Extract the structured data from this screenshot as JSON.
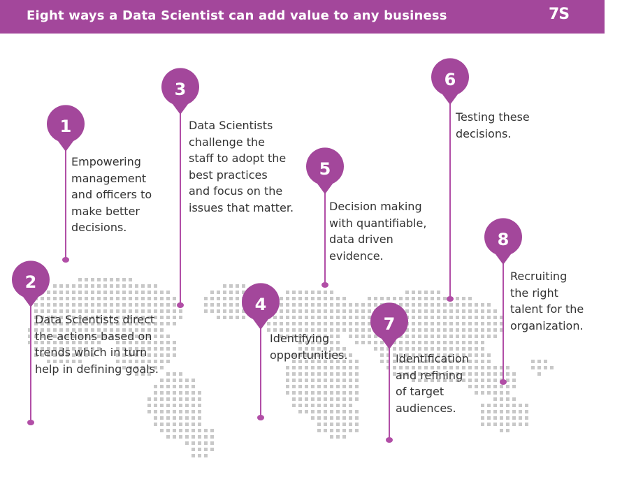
{
  "header": {
    "title": "Eight ways a Data Scientist can add value to any business",
    "logo_text": "7S"
  },
  "colors": {
    "accent": "#a3479b",
    "pin_line": "#b14ea6",
    "map_dots": "#c8c8c8",
    "text": "#333333"
  },
  "points": [
    {
      "number": "1",
      "lines": [
        "Empowering",
        "management",
        "and officers to",
        "make better",
        "decisions."
      ]
    },
    {
      "number": "2",
      "lines": [
        "Data Scientists direct",
        "the actions based on",
        "trends which in turn",
        "help in defining goals."
      ]
    },
    {
      "number": "3",
      "lines": [
        "Data Scientists",
        "challenge the",
        "staff to adopt the",
        "best practices",
        "and focus on the",
        "issues that matter."
      ]
    },
    {
      "number": "4",
      "lines": [
        "Identifying",
        "opportunities."
      ]
    },
    {
      "number": "5",
      "lines": [
        "Decision making",
        "with quantifiable,",
        "data driven",
        "evidence."
      ]
    },
    {
      "number": "6",
      "lines": [
        "Testing these",
        "decisions."
      ]
    },
    {
      "number": "7",
      "lines": [
        "Identification",
        "and refining",
        "of target",
        "audiences."
      ]
    },
    {
      "number": "8",
      "lines": [
        "Recruiting",
        "the right",
        "talent for the",
        "organization."
      ]
    }
  ]
}
